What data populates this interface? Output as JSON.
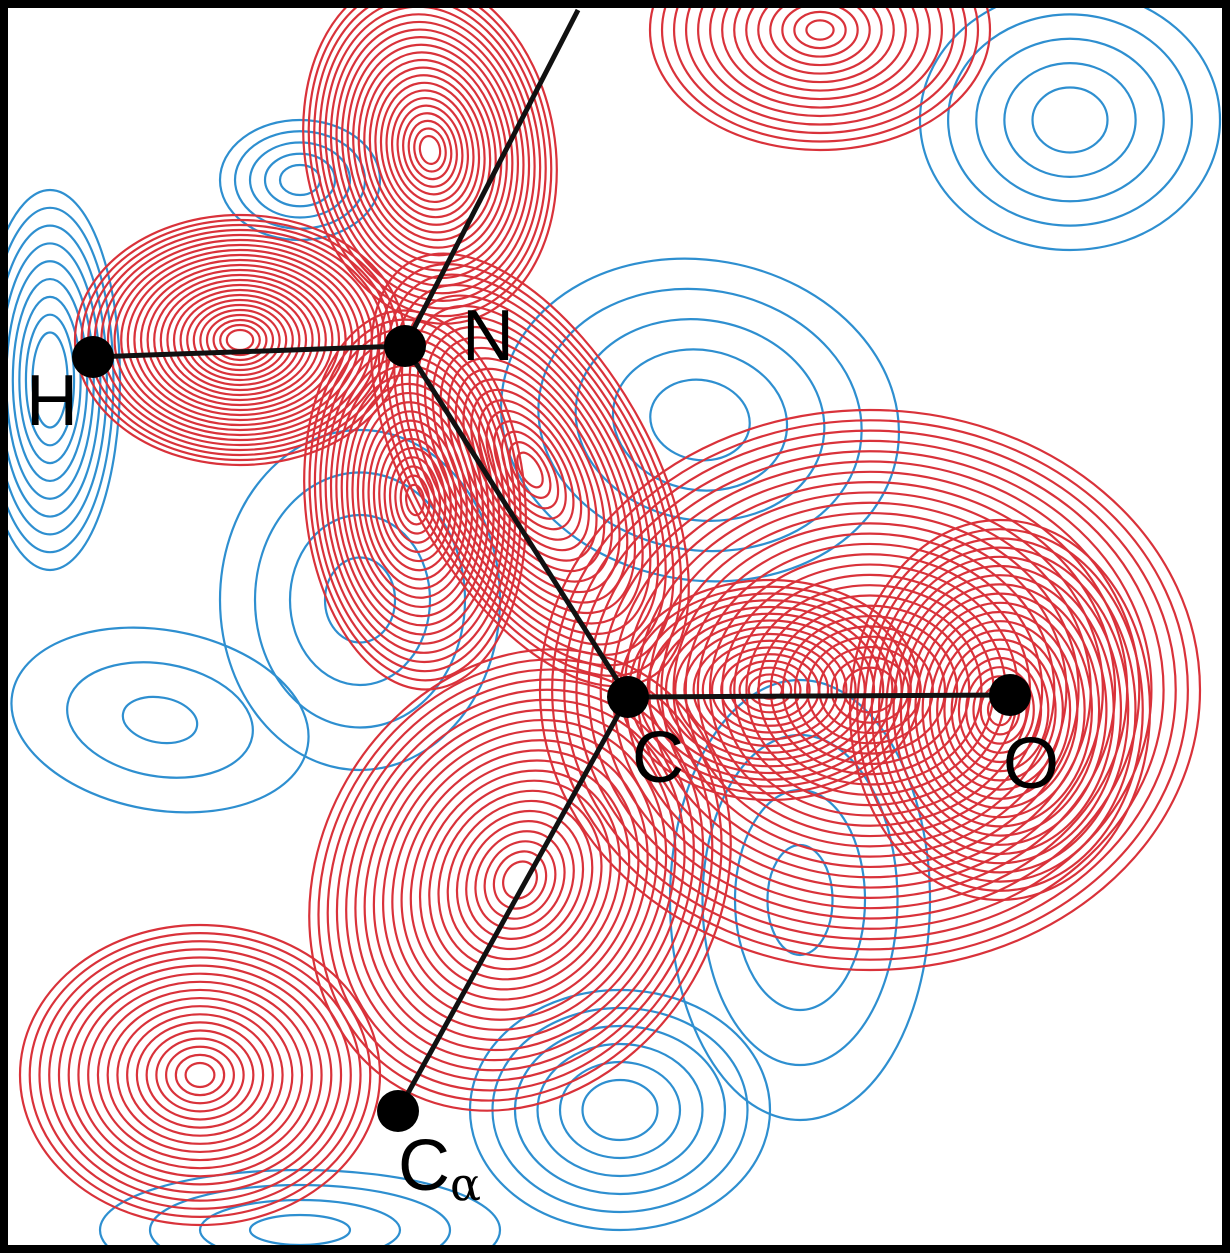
{
  "atoms": [
    {
      "label": "H"
    },
    {
      "label": "N"
    },
    {
      "label": "C"
    },
    {
      "label": "O"
    },
    {
      "label": "C",
      "subscript": "α"
    }
  ]
}
